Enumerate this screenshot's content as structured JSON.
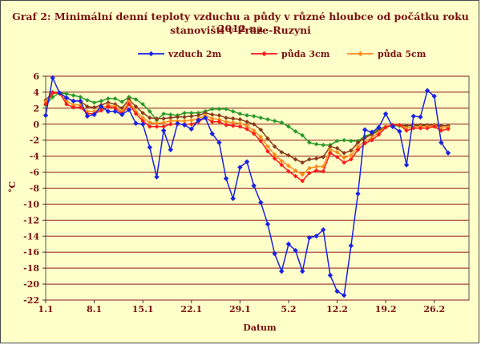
{
  "colors": {
    "vzduch": "#1a22e6",
    "puda3": "#ff1a1a",
    "puda5": "#ff8c1a",
    "puda10": "#8b3a1a",
    "puda20": "#2a9a2a",
    "grid": "#8b1a1a",
    "plot_bg": "#ffffc9",
    "text": "#7a1010"
  },
  "chart_data": {
    "type": "line",
    "title": "Graf 2: Minimální denní teploty vzduchu a půdy v různé hloubce od počátku roku 2012 na stanovišti v Praze-Ruzyni",
    "title_lines": [
      "Graf 2: Minimální denní teploty vzduchu a půdy v různé hloubce od počátku roku 2012 na",
      "stanovišti v Praze-Ruzyni"
    ],
    "xlabel": "Datum",
    "ylabel": "°C",
    "ylim": [
      -22,
      6
    ],
    "yticks": [
      6,
      4,
      2,
      0,
      -2,
      -4,
      -6,
      -8,
      -10,
      -12,
      -14,
      -16,
      -18,
      -20,
      -22
    ],
    "xlim": [
      1,
      62
    ],
    "xticks": [
      {
        "day": 1,
        "label": "1.1"
      },
      {
        "day": 8,
        "label": "8.1"
      },
      {
        "day": 15,
        "label": "15.1"
      },
      {
        "day": 22,
        "label": "22.1"
      },
      {
        "day": 29,
        "label": "29.1"
      },
      {
        "day": 36,
        "label": "5.2"
      },
      {
        "day": 43,
        "label": "12.2"
      },
      {
        "day": 50,
        "label": "19.2"
      },
      {
        "day": 57,
        "label": "26.2"
      }
    ],
    "grid": "horizontal",
    "legend_position": "top",
    "series": [
      {
        "name": "vzduch 2m",
        "color_key": "vzduch",
        "marker": "diamond",
        "in_legend": true,
        "values": [
          1.1,
          5.8,
          3.9,
          3.3,
          2.9,
          2.9,
          1.0,
          1.2,
          2.2,
          1.6,
          1.6,
          1.2,
          1.8,
          0.1,
          0.0,
          -2.9,
          -6.6,
          -0.8,
          -3.2,
          0.1,
          -0.1,
          -0.6,
          0.5,
          0.8,
          -1.2,
          -2.3,
          -6.8,
          -9.3,
          -5.4,
          -4.7,
          -7.7,
          -9.8,
          -12.5,
          -16.2,
          -18.4,
          -15.0,
          -15.8,
          -18.4,
          -14.2,
          -14.0,
          -13.2,
          -18.9,
          -20.9,
          -21.4,
          -15.2,
          -8.7,
          -0.7,
          -1.0,
          -0.4,
          1.3,
          -0.3,
          -0.9,
          -5.1,
          1.0,
          0.9,
          4.2,
          3.5,
          -2.3,
          -3.6
        ]
      },
      {
        "name": "půda 3cm",
        "color_key": "puda3",
        "marker": "diamond",
        "in_legend": true,
        "values": [
          2.5,
          3.9,
          3.9,
          2.5,
          2.1,
          2.1,
          1.3,
          1.3,
          1.7,
          2.2,
          2.0,
          1.3,
          2.5,
          1.3,
          0.4,
          -0.3,
          -0.3,
          -0.3,
          0.0,
          0.0,
          0.0,
          0.0,
          0.3,
          0.8,
          0.3,
          0.3,
          -0.1,
          -0.2,
          -0.3,
          -0.6,
          -1.2,
          -2.1,
          -3.4,
          -4.3,
          -5.1,
          -5.9,
          -6.5,
          -7.1,
          -6.1,
          -5.8,
          -5.9,
          -3.6,
          -4.1,
          -4.8,
          -4.4,
          -3.2,
          -2.4,
          -2.0,
          -1.3,
          -0.4,
          -0.1,
          -0.1,
          -0.8,
          -0.5,
          -0.5,
          -0.5,
          -0.3,
          -0.8,
          -0.6
        ]
      },
      {
        "name": "půda 5cm",
        "color_key": "puda5",
        "marker": "diamond",
        "in_legend": true,
        "values": [
          2.8,
          3.9,
          3.8,
          2.9,
          2.4,
          2.4,
          1.6,
          1.6,
          2.0,
          2.4,
          2.2,
          1.6,
          2.8,
          1.6,
          0.8,
          0.2,
          0.1,
          0.2,
          0.4,
          0.4,
          0.4,
          0.5,
          0.7,
          1.1,
          0.7,
          0.6,
          0.3,
          0.2,
          0.1,
          -0.2,
          -0.8,
          -1.6,
          -2.8,
          -3.8,
          -4.6,
          -5.2,
          -5.8,
          -6.3,
          -5.5,
          -5.3,
          -5.3,
          -3.2,
          -3.5,
          -4.2,
          -3.9,
          -2.8,
          -2.1,
          -1.7,
          -1.0,
          -0.3,
          -0.1,
          -0.1,
          -0.5,
          -0.3,
          -0.3,
          -0.3,
          -0.2,
          -0.5,
          -0.4
        ]
      },
      {
        "name": "",
        "color_key": "puda10",
        "marker": "diamond",
        "in_legend": false,
        "values": [
          3.0,
          4.0,
          3.9,
          3.3,
          2.9,
          2.9,
          2.2,
          2.1,
          2.4,
          2.7,
          2.5,
          2.0,
          3.1,
          2.2,
          1.4,
          0.8,
          0.7,
          0.7,
          0.8,
          0.9,
          0.9,
          1.0,
          1.1,
          1.4,
          1.2,
          1.1,
          0.8,
          0.7,
          0.6,
          0.3,
          0.0,
          -0.7,
          -1.8,
          -2.8,
          -3.5,
          -3.9,
          -4.4,
          -4.8,
          -4.4,
          -4.3,
          -4.1,
          -2.8,
          -3.0,
          -3.6,
          -3.3,
          -2.3,
          -1.7,
          -1.3,
          -0.8,
          -0.3,
          -0.1,
          -0.1,
          -0.2,
          -0.1,
          -0.1,
          -0.1,
          -0.1,
          -0.2,
          -0.2
        ]
      },
      {
        "name": "",
        "color_key": "puda20",
        "marker": "diamond",
        "in_legend": false,
        "values": [
          2.4,
          3.4,
          3.9,
          3.8,
          3.6,
          3.4,
          3.0,
          2.7,
          2.9,
          3.2,
          3.2,
          2.8,
          3.4,
          3.1,
          2.5,
          1.6,
          0.5,
          1.3,
          1.2,
          1.1,
          1.4,
          1.4,
          1.4,
          1.6,
          1.9,
          1.9,
          1.9,
          1.6,
          1.3,
          1.1,
          1.0,
          0.8,
          0.6,
          0.4,
          0.2,
          -0.3,
          -0.9,
          -1.4,
          -2.3,
          -2.5,
          -2.6,
          -2.6,
          -2.1,
          -2.0,
          -2.1,
          -2.1,
          -1.5,
          -1.2,
          -0.6,
          -0.3,
          -0.2,
          -0.2,
          -0.2,
          -0.2,
          -0.2,
          -0.2,
          -0.2,
          -0.2,
          -0.2
        ]
      }
    ]
  }
}
